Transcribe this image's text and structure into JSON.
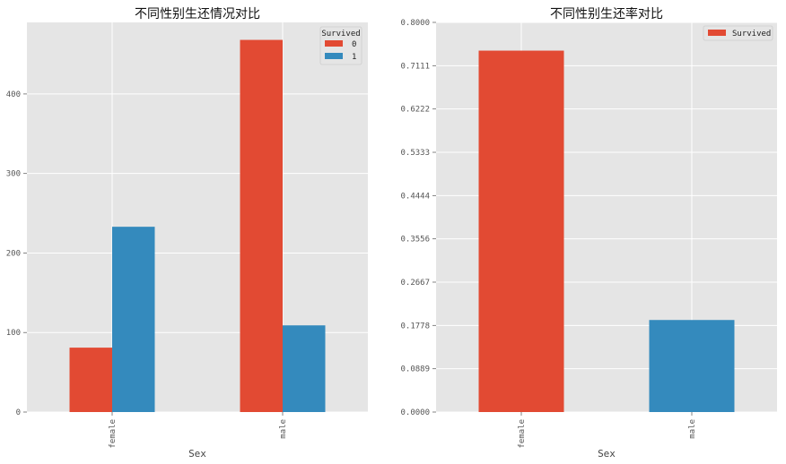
{
  "colors": {
    "series0": "#E24A33",
    "series1": "#348ABD",
    "panel_bg": "#E5E5E5",
    "grid": "#FFFFFF"
  },
  "chart_data": [
    {
      "type": "bar",
      "title": "不同性别生还情况对比",
      "xlabel": "Sex",
      "ylabel": "",
      "categories": [
        "female",
        "male"
      ],
      "series": [
        {
          "name": "0",
          "values": [
            81,
            468
          ]
        },
        {
          "name": "1",
          "values": [
            233,
            109
          ]
        }
      ],
      "ylim": [
        0,
        490
      ],
      "yticks": [
        "0",
        "100",
        "200",
        "300",
        "400"
      ],
      "legend": {
        "title": "Survived",
        "position": "top-right"
      },
      "grid": true
    },
    {
      "type": "bar",
      "title": "不同性别生还率对比",
      "xlabel": "Sex",
      "ylabel": "",
      "categories": [
        "female",
        "male"
      ],
      "values": [
        0.742,
        0.189
      ],
      "series_name": "Survived",
      "ylim": [
        0,
        0.8
      ],
      "yticks": [
        "0.0000",
        "0.0889",
        "0.1778",
        "0.2667",
        "0.3556",
        "0.4444",
        "0.5333",
        "0.6222",
        "0.7111",
        "0.8000"
      ],
      "legend": {
        "position": "top-right"
      },
      "grid": true
    }
  ]
}
